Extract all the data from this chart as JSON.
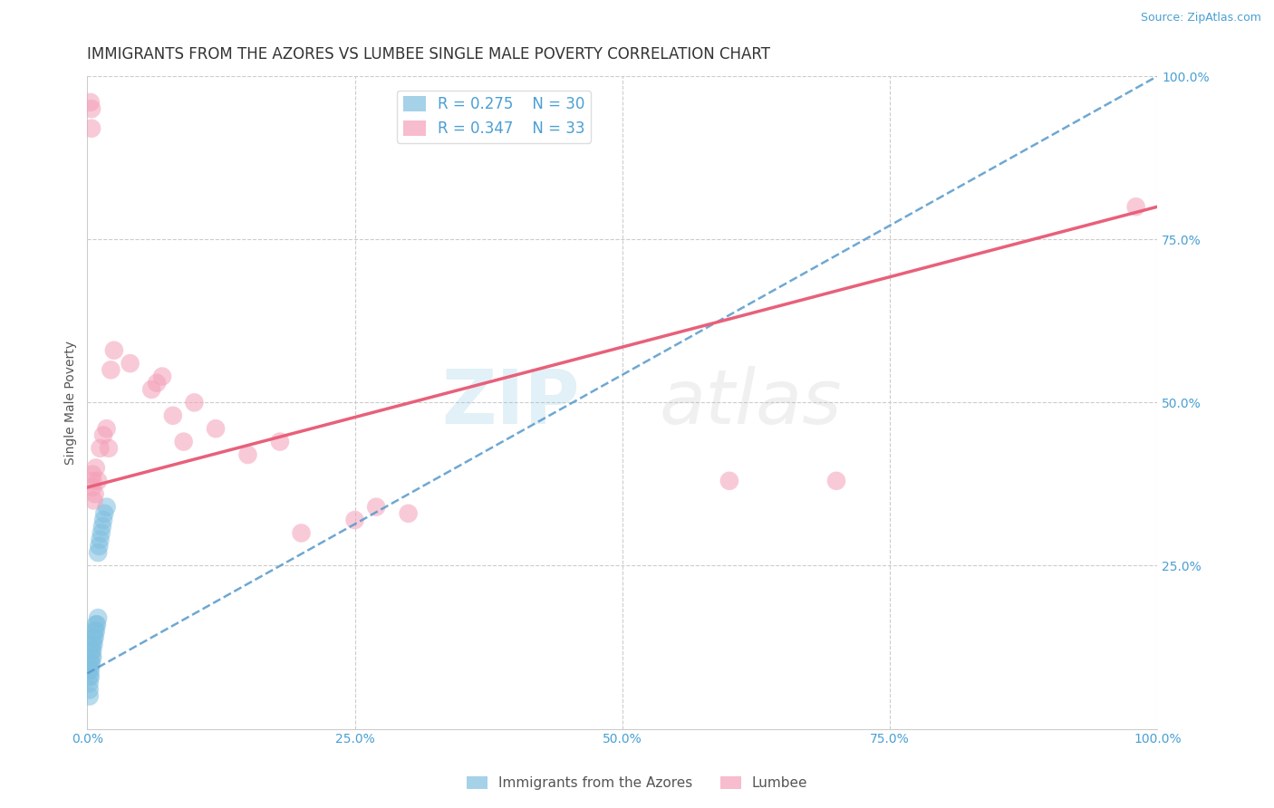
{
  "title": "IMMIGRANTS FROM THE AZORES VS LUMBEE SINGLE MALE POVERTY CORRELATION CHART",
  "source": "Source: ZipAtlas.com",
  "ylabel": "Single Male Poverty",
  "R_azores": 0.275,
  "N_azores": 30,
  "R_lumbee": 0.347,
  "N_lumbee": 33,
  "azores_color": "#7fbfdf",
  "lumbee_color": "#f4a0b8",
  "azores_line_color": "#5599cc",
  "lumbee_line_color": "#e8607a",
  "bg_color": "#ffffff",
  "grid_color": "#cccccc",
  "azores_x": [
    0.002,
    0.002,
    0.002,
    0.002,
    0.002,
    0.003,
    0.003,
    0.003,
    0.004,
    0.004,
    0.004,
    0.005,
    0.005,
    0.005,
    0.006,
    0.006,
    0.007,
    0.007,
    0.008,
    0.008,
    0.009,
    0.01,
    0.01,
    0.011,
    0.012,
    0.013,
    0.014,
    0.015,
    0.016,
    0.018
  ],
  "azores_y": [
    0.05,
    0.06,
    0.07,
    0.08,
    0.09,
    0.08,
    0.09,
    0.1,
    0.1,
    0.11,
    0.12,
    0.11,
    0.12,
    0.13,
    0.13,
    0.14,
    0.14,
    0.15,
    0.15,
    0.16,
    0.16,
    0.17,
    0.27,
    0.28,
    0.29,
    0.3,
    0.31,
    0.32,
    0.33,
    0.34
  ],
  "lumbee_x": [
    0.003,
    0.004,
    0.004,
    0.005,
    0.005,
    0.005,
    0.006,
    0.007,
    0.008,
    0.01,
    0.012,
    0.015,
    0.018,
    0.02,
    0.022,
    0.025,
    0.04,
    0.06,
    0.065,
    0.07,
    0.08,
    0.09,
    0.1,
    0.12,
    0.15,
    0.18,
    0.2,
    0.25,
    0.27,
    0.3,
    0.6,
    0.7,
    0.98
  ],
  "lumbee_y": [
    0.96,
    0.92,
    0.95,
    0.37,
    0.38,
    0.39,
    0.35,
    0.36,
    0.4,
    0.38,
    0.43,
    0.45,
    0.46,
    0.43,
    0.55,
    0.58,
    0.56,
    0.52,
    0.53,
    0.54,
    0.48,
    0.44,
    0.5,
    0.46,
    0.42,
    0.44,
    0.3,
    0.32,
    0.34,
    0.33,
    0.38,
    0.38,
    0.8
  ],
  "xlim": [
    0.0,
    1.0
  ],
  "ylim": [
    0.0,
    1.0
  ],
  "xtick_labels": [
    "0.0%",
    "25.0%",
    "50.0%",
    "75.0%",
    "100.0%"
  ],
  "xtick_vals": [
    0.0,
    0.25,
    0.5,
    0.75,
    1.0
  ],
  "ytick_labels": [
    "25.0%",
    "50.0%",
    "75.0%",
    "100.0%"
  ],
  "ytick_vals": [
    0.25,
    0.5,
    0.75,
    1.0
  ],
  "title_fontsize": 12,
  "axis_label_fontsize": 10,
  "tick_fontsize": 10,
  "legend_fontsize": 12,
  "marker_size": 220,
  "marker_alpha": 0.55,
  "lumbee_trend_x0": 0.0,
  "lumbee_trend_y0": 0.37,
  "lumbee_trend_x1": 1.0,
  "lumbee_trend_y1": 0.8,
  "azores_trend_x0": 0.0,
  "azores_trend_y0": 0.085,
  "azores_trend_x1": 1.0,
  "azores_trend_y1": 1.0
}
